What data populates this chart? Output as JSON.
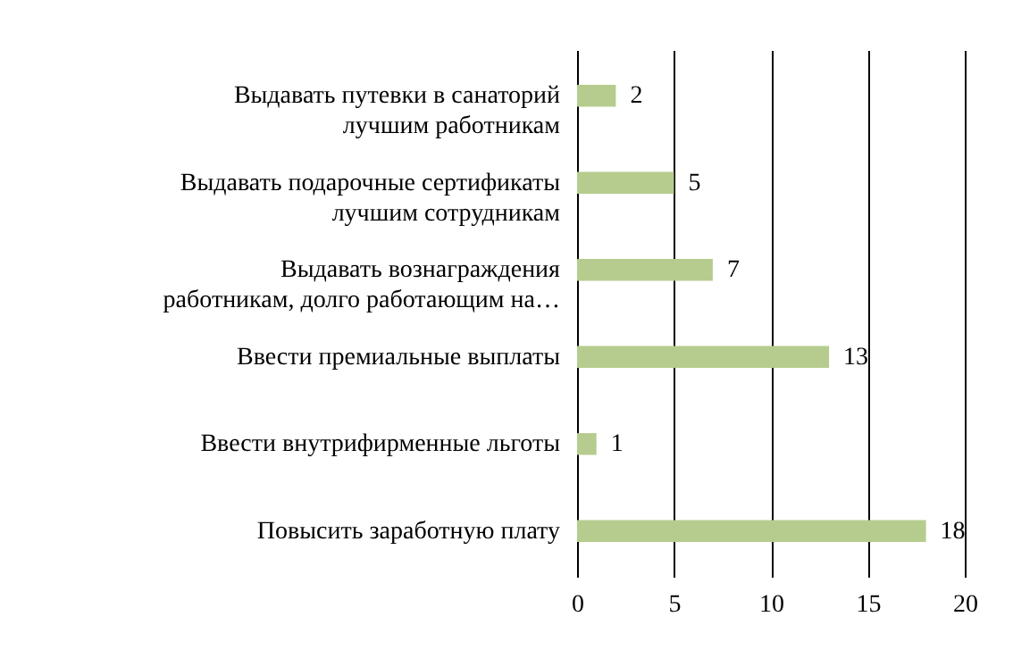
{
  "chart_data": {
    "type": "bar",
    "orientation": "horizontal",
    "categories": [
      "Выдавать путевки в санаторий лучшим работникам",
      "Выдавать подарочные сертификаты лучшим сотрудникам",
      "Выдавать вознаграждения работникам, долго работающим на…",
      "Ввести премиальные выплаты",
      "Ввести внутрифирменные льготы",
      "Повысить заработную плату"
    ],
    "values": [
      2,
      5,
      7,
      13,
      1,
      18
    ],
    "color": "#b5cc8e",
    "xlim": [
      0,
      20
    ],
    "xticks": [
      0,
      5,
      10,
      15,
      20
    ],
    "grid": "x",
    "data_labels": true
  }
}
